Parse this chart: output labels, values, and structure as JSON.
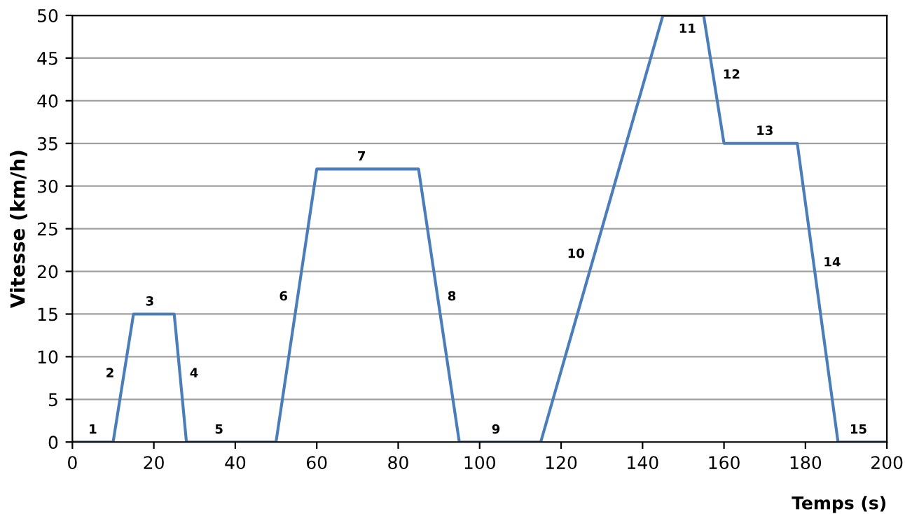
{
  "chart_data": {
    "type": "line",
    "xlabel": "Temps (s)",
    "ylabel": "Vitesse (km/h)",
    "x": [
      0,
      10,
      15,
      25,
      28,
      50,
      60,
      85,
      95,
      115,
      145,
      155,
      160,
      178,
      188,
      200
    ],
    "series": [
      {
        "color": "#4a7ebb",
        "values": [
          0,
          0,
          15,
          15,
          0,
          0,
          32,
          32,
          0,
          0,
          50,
          50,
          35,
          35,
          0,
          0
        ]
      }
    ],
    "xlim": [
      0,
      200
    ],
    "ylim": [
      0,
      50
    ],
    "xticks": [
      0,
      20,
      40,
      60,
      80,
      100,
      120,
      140,
      160,
      180,
      200
    ],
    "yticks": [
      0,
      5,
      10,
      15,
      20,
      25,
      30,
      35,
      40,
      45,
      50
    ],
    "grid": "y",
    "marker": "none",
    "line_style": "solid",
    "annotations": [
      {
        "text": "1",
        "x": 5,
        "y": 0
      },
      {
        "text": "2",
        "x": 12.7,
        "y": 8
      },
      {
        "text": "3",
        "x": 19,
        "y": 15
      },
      {
        "text": "4",
        "x": 26.4,
        "y": 8
      },
      {
        "text": "5",
        "x": 36,
        "y": 0
      },
      {
        "text": "6",
        "x": 55.3,
        "y": 17
      },
      {
        "text": "7",
        "x": 71,
        "y": 32
      },
      {
        "text": "8",
        "x": 89.7,
        "y": 17
      },
      {
        "text": "9",
        "x": 104,
        "y": 0
      },
      {
        "text": "10",
        "x": 128.2,
        "y": 22
      },
      {
        "text": "11",
        "x": 151,
        "y": 50
      },
      {
        "text": "12",
        "x": 157.3,
        "y": 43
      },
      {
        "text": "13",
        "x": 170,
        "y": 35
      },
      {
        "text": "14",
        "x": 182,
        "y": 21
      },
      {
        "text": "15",
        "x": 193,
        "y": 0
      }
    ]
  }
}
